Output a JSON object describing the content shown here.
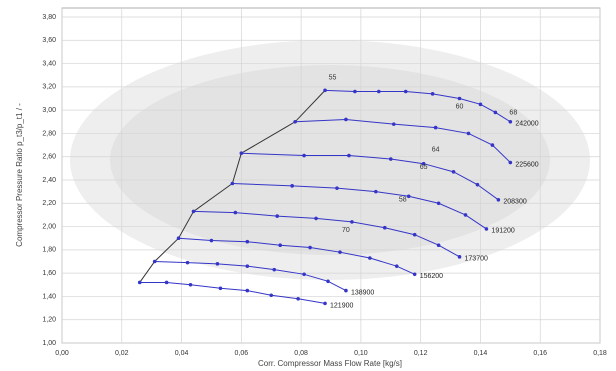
{
  "chart_data": {
    "type": "line",
    "x_label": "Corr. Compressor Mass Flow Rate [kg/s]",
    "y_label": "Compressor Pressure Ratio p_t3/p_t1  /  -",
    "xlim": [
      0,
      0.18
    ],
    "ylim": [
      1.0,
      3.8
    ],
    "xticks": [
      {
        "value": 0,
        "label": "0,00"
      },
      {
        "value": 0.02,
        "label": "0,02"
      },
      {
        "value": 0.04,
        "label": "0,04"
      },
      {
        "value": 0.06,
        "label": "0,06"
      },
      {
        "value": 0.08,
        "label": "0,08"
      },
      {
        "value": 0.1,
        "label": "0,10"
      },
      {
        "value": 0.12,
        "label": "0,12"
      },
      {
        "value": 0.14,
        "label": "0,14"
      },
      {
        "value": 0.16,
        "label": "0,16"
      },
      {
        "value": 0.18,
        "label": "0,18"
      }
    ],
    "yticks": [
      {
        "value": 1.0,
        "label": "1,00"
      },
      {
        "value": 1.2,
        "label": "1,20"
      },
      {
        "value": 1.4,
        "label": "1,40"
      },
      {
        "value": 1.6,
        "label": "1,60"
      },
      {
        "value": 1.8,
        "label": "1,80"
      },
      {
        "value": 2.0,
        "label": "2,00"
      },
      {
        "value": 2.2,
        "label": "2,20"
      },
      {
        "value": 2.4,
        "label": "2,40"
      },
      {
        "value": 2.6,
        "label": "2,60"
      },
      {
        "value": 2.8,
        "label": "2,80"
      },
      {
        "value": 3.0,
        "label": "3,00"
      },
      {
        "value": 3.2,
        "label": "3,20"
      },
      {
        "value": 3.4,
        "label": "3,40"
      },
      {
        "value": 3.6,
        "label": "3,60"
      },
      {
        "value": 3.8,
        "label": "3,80"
      }
    ],
    "grid": true,
    "color": "#3535c8",
    "surge_color": "#333333",
    "series": [
      {
        "name": "121900",
        "x": [
          0.026,
          0.035,
          0.043,
          0.053,
          0.062,
          0.07,
          0.079,
          0.088
        ],
        "values": [
          1.52,
          1.52,
          1.5,
          1.47,
          1.45,
          1.41,
          1.38,
          1.34
        ]
      },
      {
        "name": "138900",
        "x": [
          0.031,
          0.042,
          0.052,
          0.062,
          0.071,
          0.081,
          0.089,
          0.095
        ],
        "values": [
          1.7,
          1.69,
          1.68,
          1.66,
          1.63,
          1.59,
          1.53,
          1.45
        ]
      },
      {
        "name": "156200",
        "x": [
          0.039,
          0.05,
          0.062,
          0.073,
          0.083,
          0.093,
          0.103,
          0.112,
          0.118
        ],
        "values": [
          1.9,
          1.88,
          1.87,
          1.84,
          1.82,
          1.78,
          1.73,
          1.66,
          1.59
        ]
      },
      {
        "name": "173700",
        "x": [
          0.044,
          0.058,
          0.072,
          0.085,
          0.097,
          0.108,
          0.118,
          0.126,
          0.133
        ],
        "values": [
          2.13,
          2.12,
          2.09,
          2.07,
          2.04,
          1.99,
          1.93,
          1.84,
          1.74
        ]
      },
      {
        "name": "191200",
        "x": [
          0.057,
          0.077,
          0.092,
          0.105,
          0.116,
          0.126,
          0.135,
          0.142
        ],
        "values": [
          2.37,
          2.35,
          2.33,
          2.3,
          2.26,
          2.2,
          2.1,
          1.98
        ]
      },
      {
        "name": "208300",
        "x": [
          0.06,
          0.081,
          0.096,
          0.11,
          0.121,
          0.131,
          0.139,
          0.146
        ],
        "values": [
          2.63,
          2.61,
          2.61,
          2.58,
          2.54,
          2.47,
          2.36,
          2.23
        ]
      },
      {
        "name": "225600",
        "x": [
          0.078,
          0.095,
          0.111,
          0.125,
          0.136,
          0.144,
          0.15
        ],
        "values": [
          2.9,
          2.92,
          2.88,
          2.85,
          2.8,
          2.7,
          2.55
        ]
      },
      {
        "name": "242000",
        "x": [
          0.088,
          0.098,
          0.106,
          0.115,
          0.124,
          0.133,
          0.14,
          0.145,
          0.15
        ],
        "values": [
          3.17,
          3.16,
          3.16,
          3.16,
          3.14,
          3.1,
          3.05,
          2.98,
          2.9
        ]
      }
    ],
    "annotations": [
      {
        "text": "55",
        "x": 0.0905,
        "y": 3.28
      },
      {
        "text": "60",
        "x": 0.133,
        "y": 3.03
      },
      {
        "text": "68",
        "x": 0.151,
        "y": 2.98
      },
      {
        "text": "64",
        "x": 0.125,
        "y": 2.66
      },
      {
        "text": "65",
        "x": 0.121,
        "y": 2.51
      },
      {
        "text": "58",
        "x": 0.114,
        "y": 2.23
      },
      {
        "text": "70",
        "x": 0.095,
        "y": 1.97
      }
    ]
  }
}
